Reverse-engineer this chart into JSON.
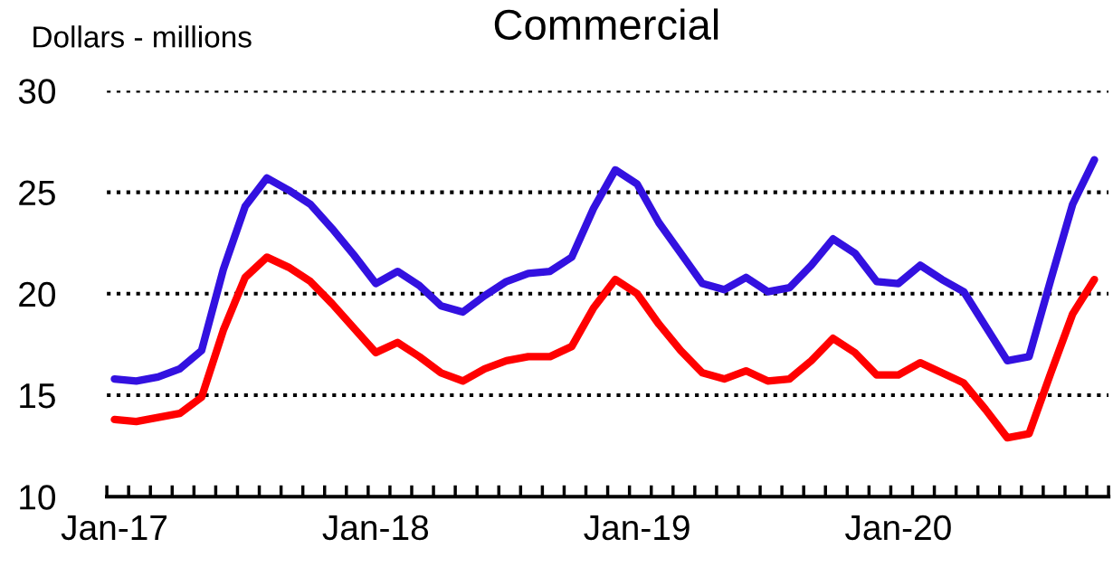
{
  "chart_data": {
    "type": "line",
    "title": "Commercial",
    "ylabel": "Dollars - millions",
    "categories": [
      "Jan-17",
      null,
      null,
      null,
      null,
      null,
      null,
      null,
      null,
      null,
      null,
      null,
      "Jan-18",
      null,
      null,
      null,
      null,
      null,
      null,
      null,
      null,
      null,
      null,
      null,
      "Jan-19",
      null,
      null,
      null,
      null,
      null,
      null,
      null,
      null,
      null,
      null,
      null,
      "Jan-20",
      null,
      null,
      null,
      null,
      null,
      null,
      null,
      null,
      null
    ],
    "series": [
      {
        "color": "#3311e0",
        "values": [
          15.8,
          15.7,
          15.9,
          16.3,
          17.2,
          21.2,
          24.3,
          25.7,
          25.1,
          24.4,
          23.2,
          21.9,
          20.5,
          21.1,
          20.4,
          19.4,
          19.1,
          19.9,
          20.6,
          21.0,
          21.1,
          21.8,
          24.2,
          26.1,
          25.4,
          23.5,
          22.0,
          20.5,
          20.2,
          20.8,
          20.1,
          20.3,
          21.4,
          22.7,
          22.0,
          20.6,
          20.5,
          21.4,
          20.7,
          20.1,
          18.4,
          16.7,
          16.9,
          20.7,
          24.4,
          26.6
        ]
      },
      {
        "color": "#ff0000",
        "values": [
          13.8,
          13.7,
          13.9,
          14.1,
          14.9,
          18.2,
          20.8,
          21.8,
          21.3,
          20.6,
          19.5,
          18.3,
          17.1,
          17.6,
          16.9,
          16.1,
          15.7,
          16.3,
          16.7,
          16.9,
          16.9,
          17.4,
          19.3,
          20.7,
          20.0,
          18.5,
          17.2,
          16.1,
          15.8,
          16.2,
          15.7,
          15.8,
          16.7,
          17.8,
          17.1,
          16.0,
          16.0,
          16.6,
          16.1,
          15.6,
          14.3,
          12.9,
          13.1,
          16.1,
          19.0,
          20.7
        ]
      }
    ],
    "ylim": [
      10,
      30
    ],
    "yticks": [
      10,
      15,
      20,
      25,
      30
    ],
    "grid": "y",
    "marker": "none",
    "line_style": "solid"
  }
}
